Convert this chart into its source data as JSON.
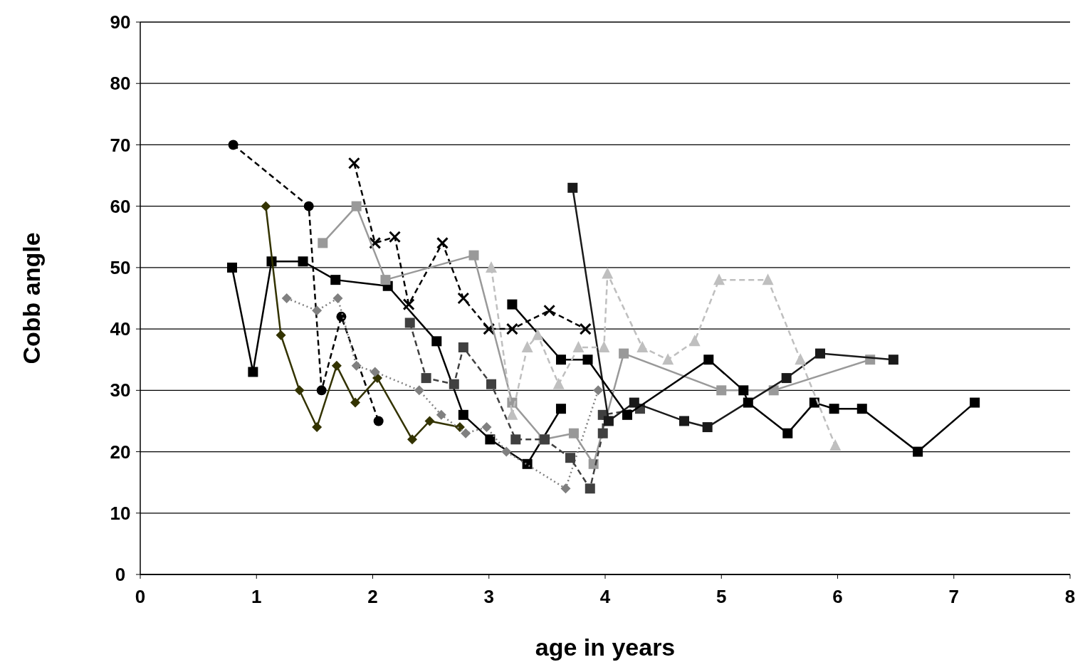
{
  "chart_data": {
    "type": "line",
    "xlabel": "age in years",
    "ylabel": "Cobb angle",
    "xlim": [
      0,
      8
    ],
    "xticks": [
      0,
      1,
      2,
      3,
      4,
      5,
      6,
      7,
      8
    ],
    "ylim": [
      0,
      90
    ],
    "yticks": [
      0,
      10,
      20,
      30,
      40,
      50,
      60,
      70,
      80,
      90
    ],
    "grid": "y",
    "series": [
      {
        "color": "#000000",
        "marker": "square",
        "line_style": "solid",
        "x": [
          0.79,
          0.97,
          1.13,
          1.4,
          1.68,
          2.13,
          2.55,
          2.78,
          3.01,
          3.33,
          3.62
        ],
        "values": [
          50,
          33,
          51,
          51,
          48,
          47,
          38,
          26,
          22,
          18,
          27
        ]
      },
      {
        "color": "#000000",
        "marker": "circle",
        "line_style": "dashed",
        "x": [
          0.8,
          1.45,
          1.56,
          1.73,
          2.05
        ],
        "values": [
          70,
          60,
          30,
          42,
          25
        ]
      },
      {
        "color": "#333300",
        "marker": "diamond",
        "line_style": "solid",
        "x": [
          1.08,
          1.21,
          1.37,
          1.52,
          1.69,
          1.85,
          2.04,
          2.34,
          2.49,
          2.75
        ],
        "values": [
          60,
          39,
          30,
          24,
          34,
          28,
          32,
          22,
          25,
          24
        ]
      },
      {
        "color": "#808080",
        "marker": "diamond",
        "line_style": "dotted",
        "x": [
          1.26,
          1.52,
          1.7,
          1.86,
          2.02,
          2.4,
          2.59,
          2.8,
          2.98,
          3.15,
          3.66,
          3.94
        ],
        "values": [
          45,
          43,
          45,
          34,
          33,
          30,
          26,
          23,
          24,
          20,
          14,
          30
        ]
      },
      {
        "color": "#000000",
        "marker": "cross",
        "line_style": "dashed",
        "x": [
          1.84,
          2.02,
          2.19,
          2.31,
          2.6,
          2.78,
          3.0,
          3.2,
          3.52,
          3.83
        ],
        "values": [
          67,
          54,
          55,
          44,
          54,
          45,
          40,
          40,
          43,
          40
        ]
      },
      {
        "color": "#999999",
        "marker": "square",
        "line_style": "solid",
        "x": [
          1.57,
          1.86,
          2.11,
          2.87,
          3.2,
          3.47,
          3.73,
          3.9,
          4.16,
          5.0,
          5.45,
          6.28
        ],
        "values": [
          54,
          60,
          48,
          52,
          28,
          22,
          23,
          18,
          36,
          30,
          30,
          35
        ]
      },
      {
        "color": "#404040",
        "marker": "square",
        "line_style": "dashed",
        "x": [
          2.32,
          2.46,
          2.7,
          2.78,
          3.02,
          3.23,
          3.48,
          3.7,
          3.87,
          3.98,
          3.98,
          4.3
        ],
        "values": [
          41,
          32,
          31,
          37,
          31,
          22,
          22,
          19,
          14,
          23,
          26,
          27
        ]
      },
      {
        "color": "#1a1a1a",
        "marker": "square",
        "line_style": "solid",
        "x": [
          3.72,
          4.03,
          4.25,
          4.68,
          4.88,
          5.56,
          5.85,
          6.48
        ],
        "values": [
          63,
          25,
          28,
          25,
          24,
          32,
          36,
          35
        ]
      },
      {
        "color": "#000000",
        "marker": "square",
        "line_style": "solid",
        "x": [
          3.2,
          3.62,
          3.85,
          4.19,
          4.89,
          5.19,
          5.23,
          5.57,
          5.8,
          5.97,
          6.21,
          6.69,
          7.18
        ],
        "values": [
          44,
          35,
          35,
          26,
          35,
          30,
          28,
          23,
          28,
          27,
          27,
          20,
          28
        ]
      },
      {
        "color": "#bfbfbf",
        "marker": "triangle",
        "line_style": "dashed",
        "x": [
          3.02,
          3.2,
          3.33,
          3.42,
          3.6,
          3.77,
          3.99,
          4.02,
          4.32,
          4.54,
          4.77,
          4.98,
          5.4,
          5.68,
          5.98
        ],
        "values": [
          50,
          26,
          37,
          39,
          31,
          37,
          37,
          49,
          37,
          35,
          38,
          48,
          48,
          35,
          21
        ]
      }
    ]
  }
}
